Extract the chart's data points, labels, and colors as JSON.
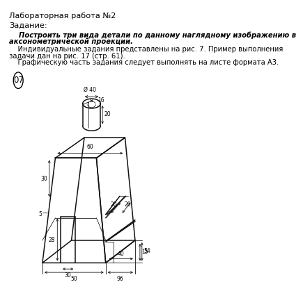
{
  "title": "Лабораторная работа №2",
  "task_label": "Задание:",
  "line_bold1": "    Построить три вида детали по данному наглядному изображению в",
  "line_bold2": "аксонометрической проекции.",
  "line_normal1": "    Индивидуальные задания представлены на рис. 7. Пример выполнения",
  "line_normal2": "задачи дан на рис. 17 (стр. 61).",
  "line_normal3": "    Графическую часть задания следует выполнять на листе формата А3.",
  "variant": "07",
  "bg_color": "#ffffff",
  "text_color": "#000000",
  "draw_color": "#111111",
  "lw_main": 1.1,
  "lw_dim": 0.6,
  "lw_thin": 0.55
}
